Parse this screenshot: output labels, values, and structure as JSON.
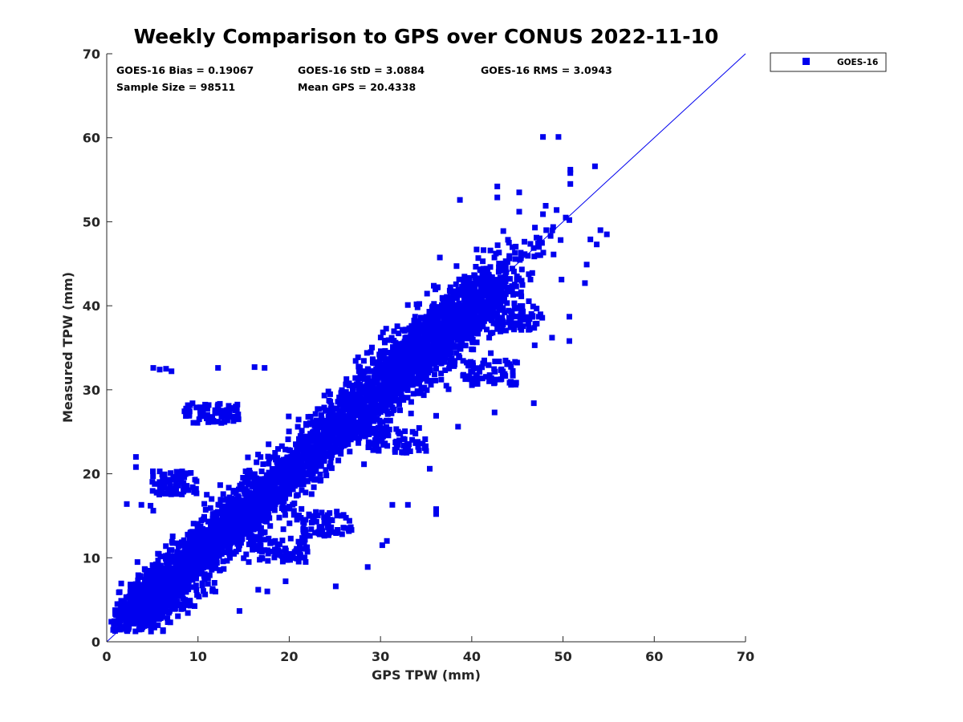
{
  "chart_data": {
    "type": "scatter",
    "title": "Weekly Comparison to GPS over CONUS 2022-11-10",
    "xlabel": "GPS TPW (mm)",
    "ylabel": "Measured TPW (mm)",
    "xlim": [
      0,
      70
    ],
    "ylim": [
      0,
      70
    ],
    "xticks": [
      "0",
      "10",
      "20",
      "30",
      "40",
      "50",
      "60",
      "70"
    ],
    "yticks": [
      "0",
      "10",
      "20",
      "30",
      "40",
      "50",
      "60",
      "70"
    ],
    "grid": false,
    "legend_position": "outside-top-right",
    "marker_color": "#0000ee",
    "line_color": "#0000ee",
    "statistics": {
      "bias": "GOES-16 Bias = 0.19067",
      "std": "GOES-16 StD = 3.0884",
      "rms": "GOES-16 RMS = 3.0943",
      "sample_size": "Sample Size = 98511",
      "mean_gps": "Mean GPS = 20.4338"
    },
    "reference_line": {
      "name": "1:1 line",
      "x": [
        0,
        70
      ],
      "y": [
        0,
        70
      ]
    },
    "series": [
      {
        "name": "GOES-16",
        "marker": "square",
        "n": 98511,
        "bias": 0.19067,
        "std": 3.0884,
        "rms": 3.0943,
        "mean_gps": 20.4338,
        "outliers": [
          {
            "x": 47.8,
            "y": 60.1
          },
          {
            "x": 49.5,
            "y": 60.1
          },
          {
            "x": 53.5,
            "y": 56.6
          },
          {
            "x": 50.8,
            "y": 56.2
          },
          {
            "x": 50.8,
            "y": 55.8
          },
          {
            "x": 50.8,
            "y": 54.5
          },
          {
            "x": 42.8,
            "y": 54.2
          },
          {
            "x": 42.8,
            "y": 52.9
          },
          {
            "x": 45.2,
            "y": 53.5
          },
          {
            "x": 38.7,
            "y": 52.6
          },
          {
            "x": 48.1,
            "y": 51.9
          },
          {
            "x": 45.2,
            "y": 51.2
          },
          {
            "x": 47.8,
            "y": 50.9
          },
          {
            "x": 49.3,
            "y": 51.4
          },
          {
            "x": 50.3,
            "y": 50.5
          },
          {
            "x": 50.7,
            "y": 50.2
          },
          {
            "x": 54.1,
            "y": 49.0
          },
          {
            "x": 54.8,
            "y": 48.5
          },
          {
            "x": 53.0,
            "y": 47.9
          },
          {
            "x": 53.7,
            "y": 47.3
          },
          {
            "x": 52.6,
            "y": 44.9
          },
          {
            "x": 52.4,
            "y": 42.7
          },
          {
            "x": 50.7,
            "y": 38.7
          },
          {
            "x": 50.7,
            "y": 35.8
          },
          {
            "x": 48.8,
            "y": 36.2
          },
          {
            "x": 46.9,
            "y": 35.3
          },
          {
            "x": 42.5,
            "y": 27.3
          },
          {
            "x": 46.8,
            "y": 28.4
          },
          {
            "x": 38.5,
            "y": 25.6
          },
          {
            "x": 36.1,
            "y": 26.9
          },
          {
            "x": 35.4,
            "y": 20.6
          },
          {
            "x": 36.1,
            "y": 15.8
          },
          {
            "x": 36.1,
            "y": 15.2
          },
          {
            "x": 33.0,
            "y": 16.3
          },
          {
            "x": 31.3,
            "y": 16.3
          },
          {
            "x": 30.7,
            "y": 12.0
          },
          {
            "x": 30.2,
            "y": 11.5
          },
          {
            "x": 28.6,
            "y": 8.9
          },
          {
            "x": 25.1,
            "y": 6.6
          },
          {
            "x": 21.8,
            "y": 9.5
          },
          {
            "x": 19.6,
            "y": 7.2
          },
          {
            "x": 17.6,
            "y": 6.0
          },
          {
            "x": 16.6,
            "y": 6.2
          },
          {
            "x": 7.1,
            "y": 32.2
          },
          {
            "x": 5.1,
            "y": 32.6
          },
          {
            "x": 5.8,
            "y": 32.4
          },
          {
            "x": 6.5,
            "y": 32.5
          },
          {
            "x": 12.2,
            "y": 32.6
          },
          {
            "x": 16.2,
            "y": 32.7
          },
          {
            "x": 17.3,
            "y": 32.6
          },
          {
            "x": 3.2,
            "y": 22.0
          },
          {
            "x": 3.2,
            "y": 20.8
          },
          {
            "x": 2.2,
            "y": 16.4
          },
          {
            "x": 3.8,
            "y": 16.3
          },
          {
            "x": 4.8,
            "y": 16.2
          },
          {
            "x": 5.1,
            "y": 15.6
          }
        ],
        "clusters": [
          {
            "cx": 24.5,
            "cy": 24.5,
            "sx": 10.0,
            "sd": 2.2
          },
          {
            "cx": 36.0,
            "cy": 36.0,
            "sx": 5.0,
            "sd": 2.0
          },
          {
            "cx": 12.0,
            "cy": 12.0,
            "sx": 5.0,
            "sd": 1.8
          },
          {
            "cx": 5.0,
            "cy": 5.2,
            "sx": 1.6,
            "sd": 1.2
          }
        ],
        "side_clusters": [
          {
            "cx": 11.5,
            "cy": 27.2,
            "rx": 3.0,
            "ry": 1.2
          },
          {
            "cx": 7.5,
            "cy": 19.0,
            "rx": 2.5,
            "ry": 1.5
          },
          {
            "cx": 42.0,
            "cy": 32.0,
            "rx": 3.0,
            "ry": 1.5
          },
          {
            "cx": 45.0,
            "cy": 38.5,
            "rx": 3.0,
            "ry": 1.5
          },
          {
            "cx": 24.0,
            "cy": 14.0,
            "rx": 3.0,
            "ry": 1.5
          },
          {
            "cx": 19.0,
            "cy": 11.0,
            "rx": 3.0,
            "ry": 1.5
          },
          {
            "cx": 32.0,
            "cy": 24.0,
            "rx": 3.0,
            "ry": 1.5
          }
        ]
      }
    ]
  }
}
